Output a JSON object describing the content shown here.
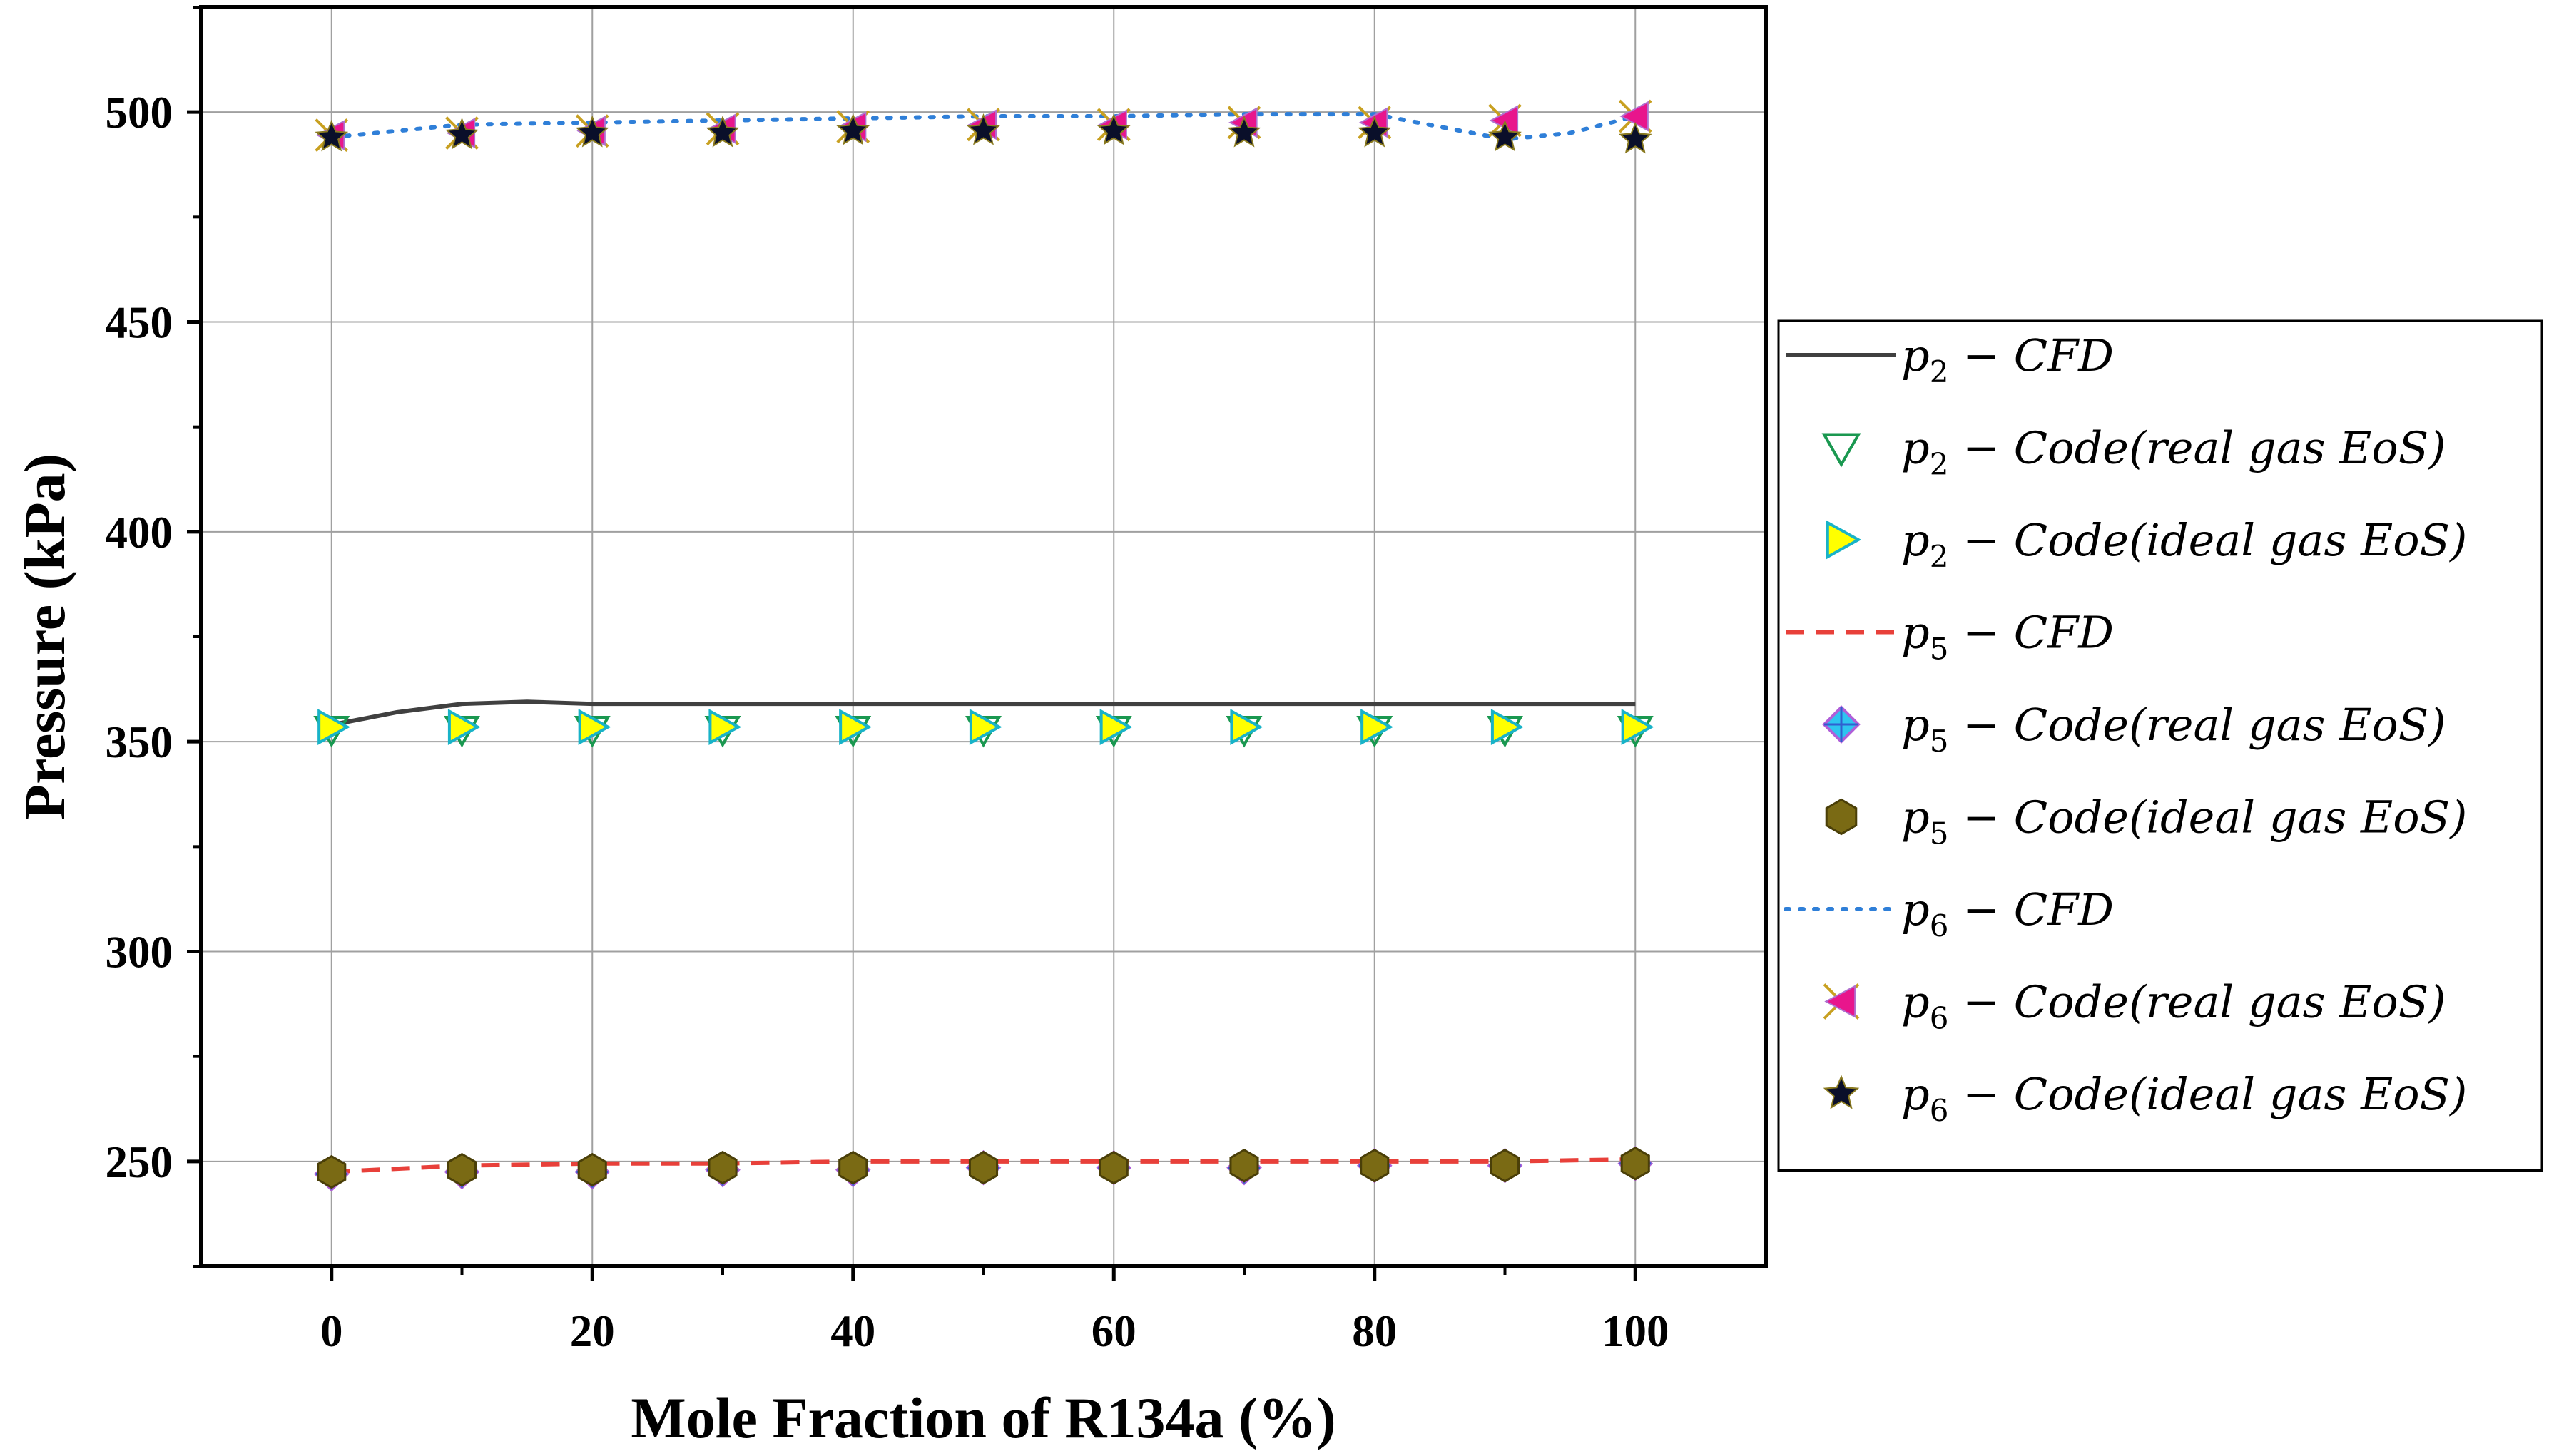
{
  "chart_data": {
    "type": "line",
    "xlabel": "Mole Fraction of R134a (%)",
    "ylabel": "Pressure (kPa)",
    "xlim": [
      -10,
      110
    ],
    "ylim": [
      225,
      525
    ],
    "xticks": [
      "0",
      "20",
      "40",
      "60",
      "80",
      "100"
    ],
    "xtick_values": [
      0,
      20,
      40,
      60,
      80,
      100
    ],
    "yticks": [
      "250",
      "300",
      "350",
      "400",
      "450",
      "500"
    ],
    "ytick_values": [
      250,
      300,
      350,
      400,
      450,
      500
    ],
    "grid": true,
    "legend_position": "outside-right",
    "series": [
      {
        "name": "p2 − CFD",
        "name_parts": [
          "p",
          "2",
          " − CFD"
        ],
        "kind": "line",
        "style": "solid",
        "color": "#404040",
        "x": [
          0,
          5,
          10,
          15,
          20,
          30,
          40,
          50,
          60,
          70,
          80,
          90,
          100
        ],
        "y": [
          354,
          357,
          359,
          359.5,
          359,
          359,
          359,
          359,
          359,
          359,
          359,
          359,
          359
        ]
      },
      {
        "name": "p2 − Code(real gas EoS)",
        "name_parts": [
          "p",
          "2",
          " − Code(real gas EoS)"
        ],
        "kind": "marker",
        "marker": "triangle-down-open",
        "color": "#1a9850",
        "x": [
          0,
          10,
          20,
          30,
          40,
          50,
          60,
          70,
          80,
          90,
          100
        ],
        "y": [
          353,
          353,
          353,
          353,
          353,
          353,
          353,
          353,
          353,
          353,
          353
        ]
      },
      {
        "name": "p2 − Code(ideal gas EoS)",
        "name_parts": [
          "p",
          "2",
          " − Code(ideal gas EoS)"
        ],
        "kind": "marker",
        "marker": "triangle-right",
        "color": "#ffff00",
        "edge": "#19b3c8",
        "x": [
          0,
          10,
          20,
          30,
          40,
          50,
          60,
          70,
          80,
          90,
          100
        ],
        "y": [
          353.5,
          353.5,
          353.5,
          353.5,
          353.5,
          353.5,
          353.5,
          353.5,
          353.5,
          353.5,
          353.5
        ]
      },
      {
        "name": "p5 − CFD",
        "name_parts": [
          "p",
          "5",
          " − CFD"
        ],
        "kind": "line",
        "style": "dashed",
        "color": "#e8403a",
        "x": [
          0,
          10,
          20,
          30,
          40,
          50,
          60,
          70,
          80,
          90,
          100
        ],
        "y": [
          247.5,
          249,
          249.5,
          249.5,
          250,
          250,
          250,
          250,
          250,
          250,
          250.5
        ]
      },
      {
        "name": "p5 − Code(real gas EoS)",
        "name_parts": [
          "p",
          "5",
          " − Code(real gas EoS)"
        ],
        "kind": "marker",
        "marker": "diamond-plus",
        "color": "#2ec4f0",
        "edge": "#b05fd8",
        "x": [
          0,
          10,
          20,
          30,
          40,
          50,
          60,
          70,
          80,
          90,
          100
        ],
        "y": [
          247,
          247.5,
          247.5,
          248,
          248,
          248.5,
          248.5,
          248.5,
          249,
          249,
          249.5
        ]
      },
      {
        "name": "p5 − Code(ideal gas EoS)",
        "name_parts": [
          "p",
          "5",
          " − Code(ideal gas EoS)"
        ],
        "kind": "marker",
        "marker": "hexagon",
        "color": "#7a6a14",
        "edge": "#4a3f08",
        "x": [
          0,
          10,
          20,
          30,
          40,
          50,
          60,
          70,
          80,
          90,
          100
        ],
        "y": [
          247.5,
          248,
          248,
          248.5,
          248.5,
          248.5,
          248.5,
          249,
          249,
          249,
          249.5
        ]
      },
      {
        "name": "p6 − CFD",
        "name_parts": [
          "p",
          "6",
          " − CFD"
        ],
        "kind": "line",
        "style": "dotted",
        "color": "#2f7fd8",
        "x": [
          0,
          10,
          20,
          30,
          40,
          50,
          60,
          70,
          80,
          90,
          95,
          100
        ],
        "y": [
          494,
          497,
          497.5,
          498,
          498.5,
          499,
          499,
          499.5,
          499.5,
          493.5,
          495,
          499
        ]
      },
      {
        "name": "p6 − Code(real gas EoS)",
        "name_parts": [
          "p",
          "6",
          " − Code(real gas EoS)"
        ],
        "kind": "marker",
        "marker": "triangle-left-x",
        "color": "#e8158c",
        "edge": "#c8a020",
        "x": [
          0,
          10,
          20,
          30,
          40,
          50,
          60,
          70,
          80,
          90,
          100
        ],
        "y": [
          494.5,
          495,
          495.5,
          496,
          496.5,
          497,
          497,
          497.5,
          497.5,
          498,
          499
        ]
      },
      {
        "name": "p6 − Code(ideal gas EoS)",
        "name_parts": [
          "p",
          "6",
          " − Code(ideal gas EoS)"
        ],
        "kind": "marker",
        "marker": "star",
        "color": "#0a0f2a",
        "edge": "#8a7a20",
        "x": [
          0,
          10,
          20,
          30,
          40,
          50,
          60,
          70,
          80,
          90,
          100
        ],
        "y": [
          494,
          494.5,
          495,
          495,
          495.5,
          495.5,
          495.5,
          495,
          495,
          494,
          493.5
        ]
      }
    ]
  }
}
